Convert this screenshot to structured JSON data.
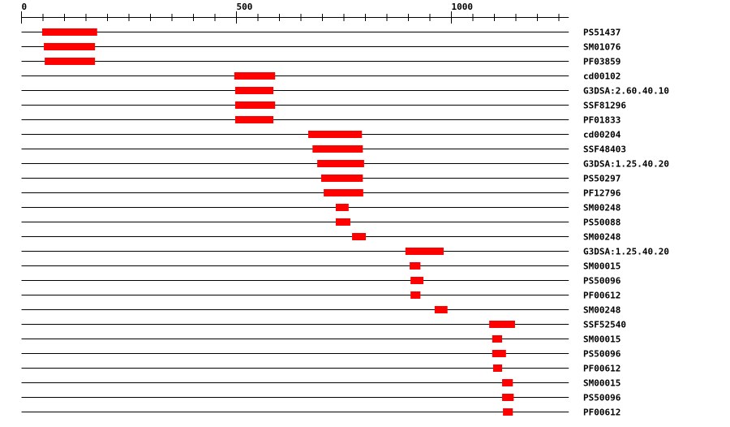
{
  "chart_data": {
    "type": "domain-map",
    "xlim": [
      0,
      1273
    ],
    "major_ticks": [
      0,
      500,
      1000
    ],
    "minor_tick_step": 50,
    "tick_labels": [
      "0",
      "500",
      "1000"
    ],
    "bar_color": "#ff0000",
    "line_color": "#000000",
    "rows": [
      {
        "label": "PS51437",
        "start": 48,
        "end": 176
      },
      {
        "label": "SM01076",
        "start": 52,
        "end": 171
      },
      {
        "label": "PF03859",
        "start": 54,
        "end": 171
      },
      {
        "label": "cd00102",
        "start": 495,
        "end": 590
      },
      {
        "label": "G3DSA:2.60.40.10",
        "start": 497,
        "end": 586
      },
      {
        "label": "SSF81296",
        "start": 497,
        "end": 590
      },
      {
        "label": "PF01833",
        "start": 497,
        "end": 586
      },
      {
        "label": "cd00204",
        "start": 667,
        "end": 792
      },
      {
        "label": "SSF48403",
        "start": 677,
        "end": 794
      },
      {
        "label": "G3DSA:1.25.40.20",
        "start": 688,
        "end": 797
      },
      {
        "label": "PS50297",
        "start": 697,
        "end": 794
      },
      {
        "label": "PF12796",
        "start": 703,
        "end": 795
      },
      {
        "label": "SM00248",
        "start": 731,
        "end": 761
      },
      {
        "label": "PS50088",
        "start": 731,
        "end": 765
      },
      {
        "label": "SM00248",
        "start": 769,
        "end": 801
      },
      {
        "label": "G3DSA:1.25.40.20",
        "start": 893,
        "end": 982
      },
      {
        "label": "SM00015",
        "start": 903,
        "end": 928
      },
      {
        "label": "PS50096",
        "start": 905,
        "end": 935
      },
      {
        "label": "PF00612",
        "start": 905,
        "end": 928
      },
      {
        "label": "SM00248",
        "start": 961,
        "end": 991
      },
      {
        "label": "SSF52540",
        "start": 1088,
        "end": 1148
      },
      {
        "label": "SM00015",
        "start": 1095,
        "end": 1118
      },
      {
        "label": "PS50096",
        "start": 1095,
        "end": 1127
      },
      {
        "label": "PF00612",
        "start": 1097,
        "end": 1118
      },
      {
        "label": "SM00015",
        "start": 1118,
        "end": 1143
      },
      {
        "label": "PS50096",
        "start": 1118,
        "end": 1145
      },
      {
        "label": "PF00612",
        "start": 1120,
        "end": 1143
      }
    ]
  }
}
